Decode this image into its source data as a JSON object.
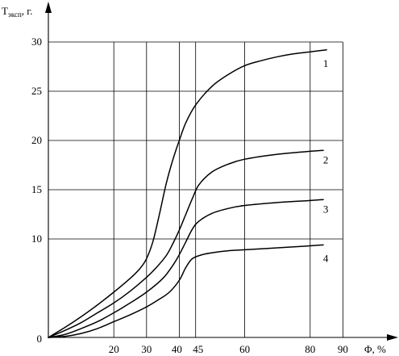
{
  "chart_data": {
    "type": "line",
    "ylabel_main": "T",
    "ylabel_sub": "эксп",
    "ylabel_tail": ", г.",
    "xlabel": "Φ, %",
    "origin_label": "0",
    "xlim": [
      0,
      90
    ],
    "ylim": [
      0,
      30
    ],
    "x_ticks": [
      20,
      30,
      40,
      45,
      60,
      80,
      90
    ],
    "y_ticks": [
      10,
      15,
      20,
      25,
      30
    ],
    "x_gridlines": [
      20,
      30,
      40,
      45,
      60,
      80,
      90
    ],
    "y_gridlines": [
      10,
      15,
      20,
      25,
      30
    ],
    "grid": true,
    "series": [
      {
        "name": "1",
        "x": [
          0,
          5,
          10,
          15,
          20,
          25,
          28,
          30,
          32,
          34,
          36,
          38,
          40,
          42,
          45,
          50,
          55,
          60,
          65,
          70,
          75,
          80,
          85
        ],
        "y": [
          0,
          1.0,
          2.1,
          3.3,
          4.6,
          6.0,
          7.0,
          8.0,
          9.8,
          12.6,
          15.6,
          18.0,
          20.0,
          21.8,
          23.6,
          25.5,
          26.7,
          27.6,
          28.1,
          28.5,
          28.8,
          29.0,
          29.2
        ]
      },
      {
        "name": "2",
        "x": [
          0,
          5,
          10,
          15,
          20,
          25,
          30,
          33,
          36,
          38,
          40,
          42,
          44,
          46,
          50,
          55,
          60,
          70,
          80,
          84
        ],
        "y": [
          0,
          0.7,
          1.5,
          2.5,
          3.5,
          4.7,
          6.1,
          7.1,
          8.3,
          9.5,
          10.9,
          12.5,
          14.1,
          15.5,
          16.8,
          17.6,
          18.1,
          18.6,
          18.9,
          19.0
        ]
      },
      {
        "name": "3",
        "x": [
          0,
          5,
          10,
          15,
          20,
          25,
          30,
          35,
          38,
          40,
          42,
          44,
          46,
          50,
          55,
          60,
          70,
          80,
          84
        ],
        "y": [
          0,
          0.3,
          0.9,
          1.6,
          2.5,
          3.5,
          4.6,
          6.0,
          7.3,
          8.4,
          9.7,
          11.0,
          11.8,
          12.6,
          13.1,
          13.4,
          13.7,
          13.9,
          14.0
        ]
      },
      {
        "name": "4",
        "x": [
          0,
          5,
          10,
          15,
          20,
          25,
          30,
          34,
          37,
          40,
          42,
          44,
          47,
          50,
          55,
          60,
          70,
          80,
          84
        ],
        "y": [
          0,
          0.1,
          0.4,
          0.9,
          1.6,
          2.3,
          3.1,
          3.9,
          4.6,
          5.8,
          7.1,
          8.0,
          8.4,
          8.6,
          8.8,
          8.9,
          9.1,
          9.3,
          9.4
        ]
      }
    ],
    "series_label_positions": [
      {
        "name": "1",
        "x": 82,
        "y": 27.8
      },
      {
        "name": "2",
        "x": 82,
        "y": 18.0
      },
      {
        "name": "3",
        "x": 82,
        "y": 13.0
      },
      {
        "name": "4",
        "x": 82,
        "y": 8.0
      }
    ]
  }
}
